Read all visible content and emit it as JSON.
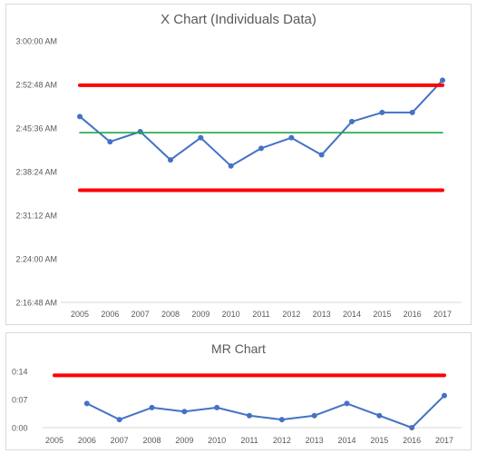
{
  "chart_data": [
    {
      "type": "line",
      "title": "X Chart (Individuals Data)",
      "xlabel": "",
      "ylabel": "",
      "categories": [
        "2005",
        "2006",
        "2007",
        "2008",
        "2009",
        "2010",
        "2011",
        "2012",
        "2013",
        "2014",
        "2015",
        "2016",
        "2017"
      ],
      "y_ticks": [
        "2:16:48 AM",
        "2:24:00 AM",
        "2:31:12 AM",
        "2:38:24 AM",
        "2:45:36 AM",
        "2:52:48 AM",
        "3:00:00 AM"
      ],
      "y_tick_values": [
        8208,
        8640,
        9072,
        9504,
        9936,
        10368,
        10800
      ],
      "ylim": [
        8208,
        10800
      ],
      "y_unit": "seconds since midnight (shown as time of day)",
      "series": [
        {
          "values": [
            10050,
            9800,
            9900,
            9620,
            9840,
            9560,
            9735,
            9840,
            9670,
            10000,
            10090,
            10090,
            10410
          ],
          "color": "#4472c4"
        },
        {
          "values": [
            9890,
            9890,
            9890,
            9890,
            9890,
            9890,
            9890,
            9890,
            9890,
            9890,
            9890,
            9890,
            9890
          ],
          "color": "#21a846"
        },
        {
          "values": [
            10360,
            10360,
            10360,
            10360,
            10360,
            10360,
            10360,
            10360,
            10360,
            10360,
            10360,
            10360,
            10360
          ],
          "color": "#ff0000"
        },
        {
          "values": [
            9320,
            9320,
            9320,
            9320,
            9320,
            9320,
            9320,
            9320,
            9320,
            9320,
            9320,
            9320,
            9320
          ],
          "color": "#ff0000"
        }
      ],
      "grid": false,
      "legend": "none"
    },
    {
      "type": "line",
      "title": "MR Chart",
      "xlabel": "",
      "ylabel": "",
      "categories": [
        "2005",
        "2006",
        "2007",
        "2008",
        "2009",
        "2010",
        "2011",
        "2012",
        "2013",
        "2014",
        "2015",
        "2016",
        "2017"
      ],
      "y_ticks": [
        "0:00",
        "0:07",
        "0:14"
      ],
      "y_tick_values": [
        0,
        7,
        14
      ],
      "ylim": [
        0,
        14
      ],
      "series": [
        {
          "values": [
            null,
            6,
            2,
            5,
            4,
            5,
            3,
            2,
            3,
            6,
            3,
            0,
            8
          ],
          "color": "#4472c4"
        },
        {
          "values": [
            13,
            13,
            13,
            13,
            13,
            13,
            13,
            13,
            13,
            13,
            13,
            13,
            13
          ],
          "color": "#ff0000"
        }
      ],
      "grid": false,
      "legend": "none"
    }
  ]
}
